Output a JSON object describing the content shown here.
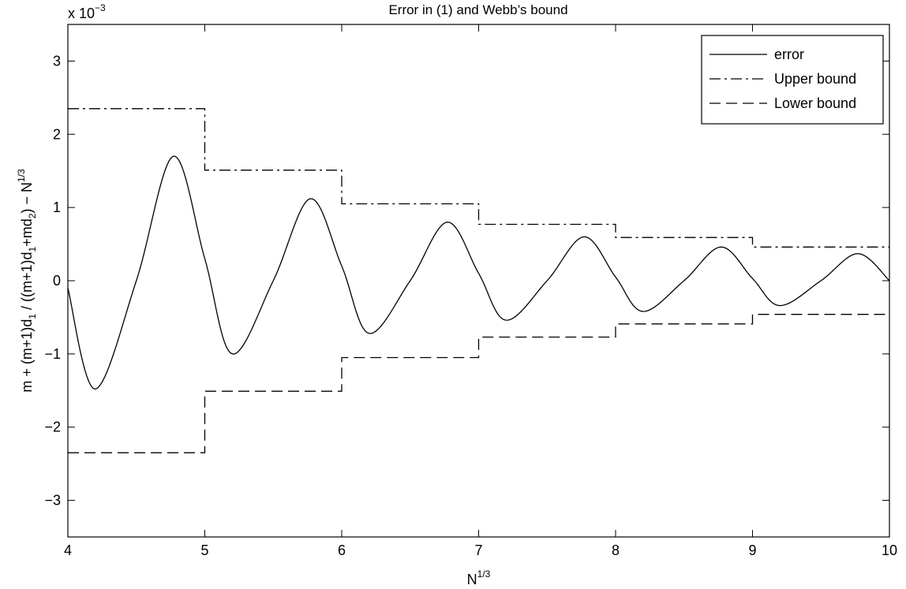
{
  "chart_data": {
    "type": "line",
    "title": "Error in (1) and Webb’s bound",
    "xlabel": {
      "base": "N",
      "sup": "1/3"
    },
    "ylabel": {
      "parts": [
        {
          "t": "m + (m+1)d"
        },
        {
          "t": "1",
          "s": "sub"
        },
        {
          "t": " / ((m+1)d"
        },
        {
          "t": "1",
          "s": "sub"
        },
        {
          "t": "+md"
        },
        {
          "t": "2",
          "s": "sub"
        },
        {
          "t": ") − N"
        },
        {
          "t": "1/3",
          "s": "sup"
        }
      ]
    },
    "y_multiplier": {
      "base": "x 10",
      "sup": "−3"
    },
    "xlim": [
      4,
      10
    ],
    "ylim": [
      -3.5,
      3.5
    ],
    "xticks": [
      4,
      5,
      6,
      7,
      8,
      9,
      10
    ],
    "yticks": [
      -3,
      -2,
      -1,
      0,
      1,
      2,
      3
    ],
    "xtick_labels": [
      "4",
      "5",
      "6",
      "7",
      "8",
      "9",
      "10"
    ],
    "ytick_labels": [
      "−3",
      "−2",
      "−1",
      "0",
      "1",
      "2",
      "3"
    ],
    "grid": false,
    "legend_position": "top-right",
    "units_note": "y values in units of 10^-3",
    "series": [
      {
        "name": "error",
        "style": "solid",
        "x": [
          4.0,
          4.2,
          4.5,
          4.77,
          5.0,
          5.2,
          5.5,
          5.77,
          6.0,
          6.2,
          6.5,
          6.77,
          7.0,
          7.2,
          7.5,
          7.77,
          8.0,
          8.2,
          8.5,
          8.77,
          9.0,
          9.2,
          9.5,
          9.77,
          10.0
        ],
        "y": [
          -0.1,
          -1.48,
          0.0,
          1.7,
          0.3,
          -1.0,
          0.0,
          1.12,
          0.2,
          -0.72,
          0.0,
          0.8,
          0.1,
          -0.54,
          0.0,
          0.6,
          0.05,
          -0.42,
          0.0,
          0.46,
          0.03,
          -0.34,
          0.0,
          0.37,
          0.0
        ]
      },
      {
        "name": "Upper bound",
        "style": "dashdot",
        "step_edges": [
          4,
          5,
          6,
          7,
          8,
          9,
          10
        ],
        "levels": [
          2.35,
          1.51,
          1.05,
          0.77,
          0.59,
          0.46
        ]
      },
      {
        "name": "Lower bound",
        "style": "dashed",
        "step_edges": [
          4,
          5,
          6,
          7,
          8,
          9,
          10
        ],
        "levels": [
          -2.35,
          -1.51,
          -1.05,
          -0.77,
          -0.59,
          -0.46
        ]
      }
    ]
  }
}
